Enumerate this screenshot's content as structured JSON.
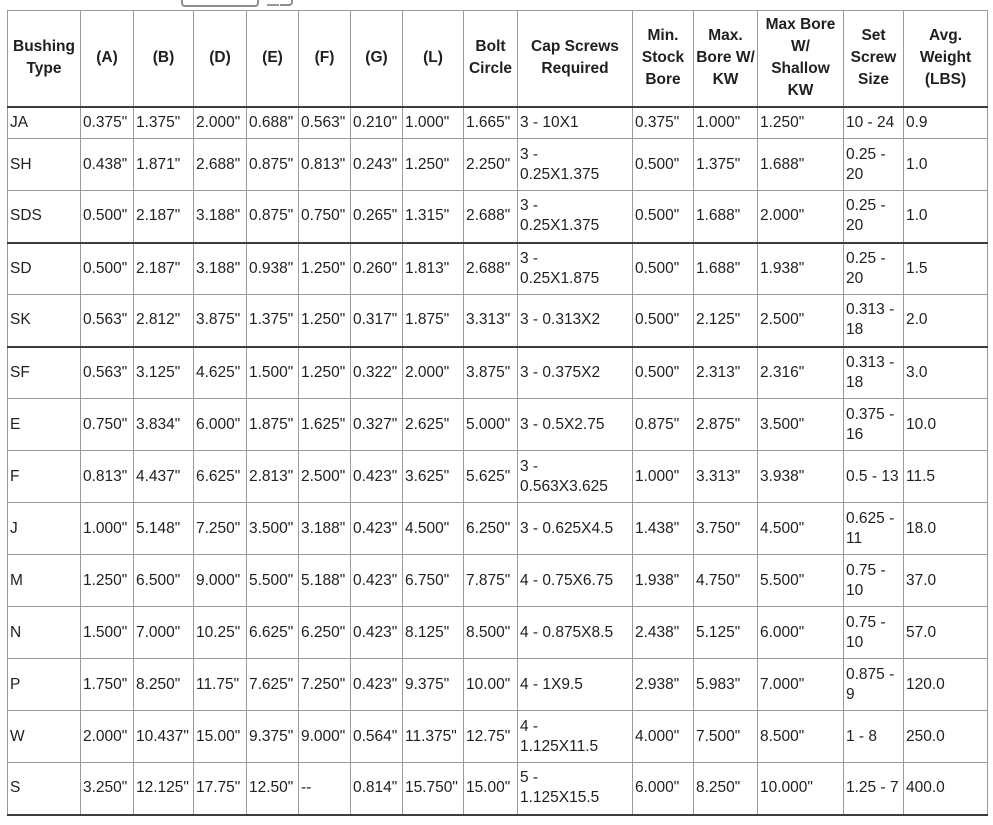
{
  "table": {
    "columns": [
      {
        "key": "type",
        "label": "Bushing Type"
      },
      {
        "key": "a",
        "label": "(A)"
      },
      {
        "key": "b",
        "label": "(B)"
      },
      {
        "key": "d",
        "label": "(D)"
      },
      {
        "key": "e",
        "label": "(E)"
      },
      {
        "key": "f",
        "label": "(F)"
      },
      {
        "key": "g",
        "label": "(G)"
      },
      {
        "key": "l",
        "label": "(L)"
      },
      {
        "key": "bolt_circle",
        "label": "Bolt Circle"
      },
      {
        "key": "cap_screws",
        "label": "Cap Screws Required"
      },
      {
        "key": "min_stock_bore",
        "label": "Min. Stock Bore"
      },
      {
        "key": "max_bore_kw",
        "label": "Max. Bore W/ KW"
      },
      {
        "key": "max_bore_shallow_kw",
        "label": "Max Bore W/ Shallow KW"
      },
      {
        "key": "set_screw_size",
        "label": "Set Screw Size"
      },
      {
        "key": "avg_weight",
        "label": "Avg. Weight (LBS)"
      }
    ],
    "rows": [
      {
        "cells": [
          "JA",
          "0.375\"",
          "1.375\"",
          "2.000\"",
          "0.688\"",
          "0.563\"",
          "0.210\"",
          "1.000\"",
          "1.665\"",
          "3 - 10X1",
          "0.375\"",
          "1.000\"",
          "1.250\"",
          "10 - 24",
          "0.9"
        ]
      },
      {
        "cells": [
          "SH",
          "0.438\"",
          "1.871\"",
          "2.688\"",
          "0.875\"",
          "0.813\"",
          "0.243\"",
          "1.250\"",
          "2.250\"",
          "3 - 0.25X1.375",
          "0.500\"",
          "1.375\"",
          "1.688\"",
          "0.25 - 20",
          "1.0"
        ]
      },
      {
        "cells": [
          "SDS",
          "0.500\"",
          "2.187\"",
          "3.188\"",
          "0.875\"",
          "0.750\"",
          "0.265\"",
          "1.315\"",
          "2.688\"",
          "3 - 0.25X1.375",
          "0.500\"",
          "1.688\"",
          "2.000\"",
          "0.25 - 20",
          "1.0"
        ]
      },
      {
        "cells": [
          "SD",
          "0.500\"",
          "2.187\"",
          "3.188\"",
          "0.938\"",
          "1.250\"",
          "0.260\"",
          "1.813\"",
          "2.688\"",
          "3 - 0.25X1.875",
          "0.500\"",
          "1.688\"",
          "1.938\"",
          "0.25 - 20",
          "1.5"
        ]
      },
      {
        "cells": [
          "SK",
          "0.563\"",
          "2.812\"",
          "3.875\"",
          "1.375\"",
          "1.250\"",
          "0.317\"",
          "1.875\"",
          "3.313\"",
          "3 - 0.313X2",
          "0.500\"",
          "2.125\"",
          "2.500\"",
          "0.313 - 18",
          "2.0"
        ]
      },
      {
        "cells": [
          "SF",
          "0.563\"",
          "3.125\"",
          "4.625\"",
          "1.500\"",
          "1.250\"",
          "0.322\"",
          "2.000\"",
          "3.875\"",
          "3 - 0.375X2",
          "0.500\"",
          "2.313\"",
          "2.316\"",
          "0.313 - 18",
          "3.0"
        ]
      },
      {
        "cells": [
          "E",
          "0.750\"",
          "3.834\"",
          "6.000\"",
          "1.875\"",
          "1.625\"",
          "0.327\"",
          "2.625\"",
          "5.000\"",
          "3 - 0.5X2.75",
          "0.875\"",
          "2.875\"",
          "3.500\"",
          "0.375 - 16",
          "10.0"
        ]
      },
      {
        "cells": [
          "F",
          "0.813\"",
          "4.437\"",
          "6.625\"",
          "2.813\"",
          "2.500\"",
          "0.423\"",
          "3.625\"",
          "5.625\"",
          "3 - 0.563X3.625",
          "1.000\"",
          "3.313\"",
          "3.938\"",
          "0.5 - 13",
          "11.5"
        ]
      },
      {
        "cells": [
          "J",
          "1.000\"",
          "5.148\"",
          "7.250\"",
          "3.500\"",
          "3.188\"",
          "0.423\"",
          "4.500\"",
          "6.250\"",
          "3 - 0.625X4.5",
          "1.438\"",
          "3.750\"",
          "4.500\"",
          "0.625 - 11",
          "18.0"
        ]
      },
      {
        "cells": [
          "M",
          "1.250\"",
          "6.500\"",
          "9.000\"",
          "5.500\"",
          "5.188\"",
          "0.423\"",
          "6.750\"",
          "7.875\"",
          "4 - 0.75X6.75",
          "1.938\"",
          "4.750\"",
          "5.500\"",
          "0.75 - 10",
          "37.0"
        ]
      },
      {
        "cells": [
          "N",
          "1.500\"",
          "7.000\"",
          "10.25\"",
          "6.625\"",
          "6.250\"",
          "0.423\"",
          "8.125\"",
          "8.500\"",
          "4 - 0.875X8.5",
          "2.438\"",
          "5.125\"",
          "6.000\"",
          "0.75 - 10",
          "57.0"
        ]
      },
      {
        "cells": [
          "P",
          "1.750\"",
          "8.250\"",
          "11.75\"",
          "7.625\"",
          "7.250\"",
          "0.423\"",
          "9.375\"",
          "10.00\"",
          "4 - 1X9.5",
          "2.938\"",
          "5.983\"",
          "7.000\"",
          "0.875 - 9",
          "120.0"
        ]
      },
      {
        "cells": [
          "W",
          "2.000\"",
          "10.437\"",
          "15.00\"",
          "9.375\"",
          "9.000\"",
          "0.564\"",
          "11.375\"",
          "12.75\"",
          "4 - 1.125X11.5",
          "4.000\"",
          "7.500\"",
          "8.500\"",
          "1 - 8",
          "250.0"
        ]
      },
      {
        "cells": [
          "S",
          "3.250\"",
          "12.125\"",
          "17.75\"",
          "12.50\"",
          "--",
          "0.814\"",
          "15.750\"",
          "15.00\"",
          "5 - 1.125X15.5",
          "6.000\"",
          "8.250\"",
          "10.000\"",
          "1.25 - 7",
          "400.0"
        ]
      }
    ]
  }
}
